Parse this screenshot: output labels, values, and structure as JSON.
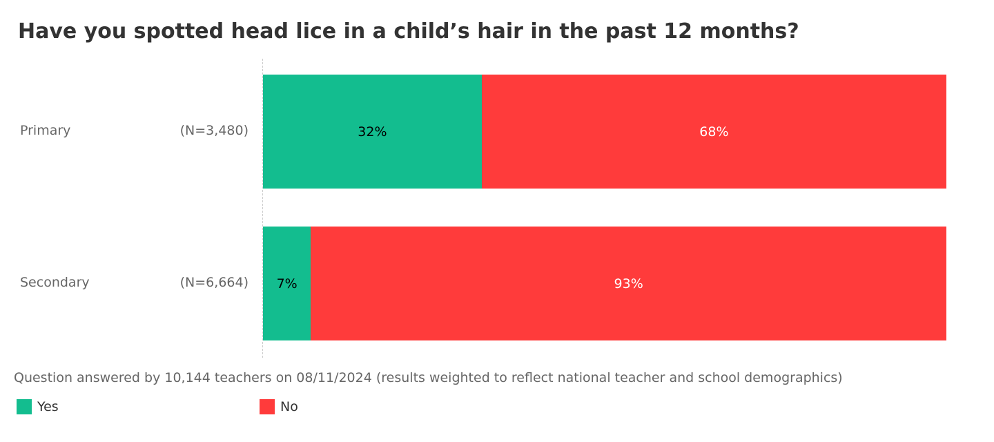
{
  "chart_data": {
    "type": "bar",
    "stacked": true,
    "orientation": "horizontal",
    "title": "Have you spotted head lice in a child’s hair in the past 12 months?",
    "categories": [
      "Primary",
      "Secondary"
    ],
    "sample_sizes": [
      "(N=3,480)",
      "(N=6,664)"
    ],
    "series": [
      {
        "name": "Yes",
        "color": "#13bd8f",
        "label_color": "#000000",
        "values": [
          32,
          7
        ]
      },
      {
        "name": "No",
        "color": "#ff3b3b",
        "label_color": "#ffffff",
        "values": [
          68,
          93
        ]
      }
    ],
    "xlim": [
      0,
      100
    ],
    "legend_position": "bottom-left",
    "note": "Question answered by 10,144 teachers on 08/11/2024 (results weighted to reflect national teacher and school demographics)"
  }
}
